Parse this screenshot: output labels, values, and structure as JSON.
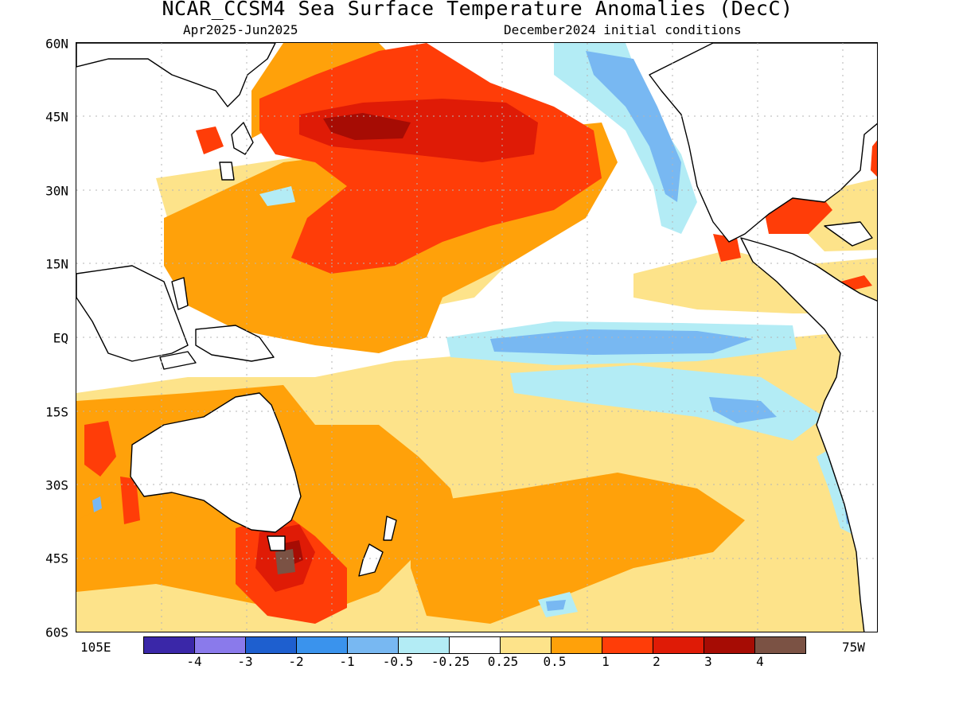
{
  "title": "NCAR_CCSM4 Sea Surface Temperature Anomalies (DecC)",
  "subtitle_left": "Apr2025-Jun2025",
  "subtitle_right": "December2024 initial conditions",
  "lat_labels": [
    "60N",
    "45N",
    "30N",
    "15N",
    "EQ",
    "15S",
    "30S",
    "45S",
    "60S"
  ],
  "lon_labels": {
    "left": "105E",
    "right": "75W"
  },
  "colorbar": {
    "tick_labels": [
      "-4",
      "-3",
      "-2",
      "-1",
      "-0.5",
      "-0.25",
      "0.25",
      "0.5",
      "1",
      "2",
      "3",
      "4"
    ],
    "colors": [
      "#3a27a8",
      "#8a7aeb",
      "#1e5fcf",
      "#3a93ed",
      "#78b8f2",
      "#b3ecf5",
      "#ffffff",
      "#fde38a",
      "#ffa10a",
      "#ff3d08",
      "#df1b06",
      "#a60c04",
      "#7b5244"
    ]
  },
  "colors": {
    "land": "#ffffff",
    "coast": "#000000",
    "grid": "#b5b5b5"
  }
}
